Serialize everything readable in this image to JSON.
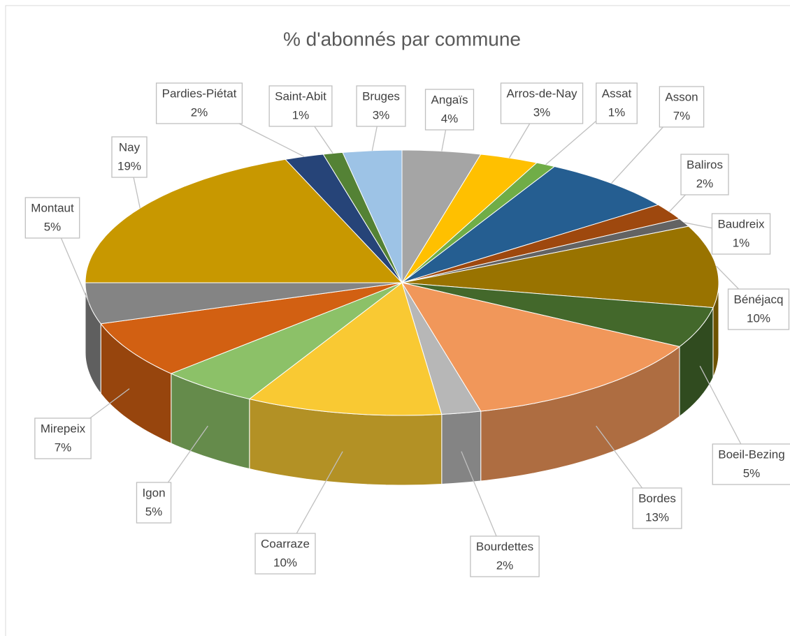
{
  "chart_data": {
    "type": "pie",
    "title": "% d'abonnés par commune",
    "categories": [
      "Angaïs",
      "Arros-de-Nay",
      "Assat",
      "Asson",
      "Baliros",
      "Baudreix",
      "Bénéjacq",
      "Boeil-Bezing",
      "Bordes",
      "Bourdettes",
      "Coarraze",
      "Igon",
      "Mirepeix",
      "Montaut",
      "Nay",
      "Pardies-Piétat",
      "Saint-Abit",
      "Bruges"
    ],
    "values": [
      4,
      3,
      1,
      7,
      2,
      1,
      10,
      5,
      13,
      2,
      10,
      5,
      7,
      5,
      19,
      2,
      1,
      3
    ],
    "value_labels": [
      "4%",
      "3%",
      "1%",
      "7%",
      "2%",
      "1%",
      "10%",
      "5%",
      "13%",
      "2%",
      "10%",
      "5%",
      "7%",
      "5%",
      "19%",
      "2%",
      "1%",
      "3%"
    ],
    "colors": [
      "#a5a5a5",
      "#ffc000",
      "#70ad47",
      "#255e91",
      "#9e480e",
      "#636363",
      "#997300",
      "#43682b",
      "#f1975a",
      "#b7b7b7",
      "#f9c933",
      "#8cc168",
      "#d26012",
      "#848484",
      "#c89800",
      "#264478",
      "#548235",
      "#9dc3e6"
    ]
  }
}
